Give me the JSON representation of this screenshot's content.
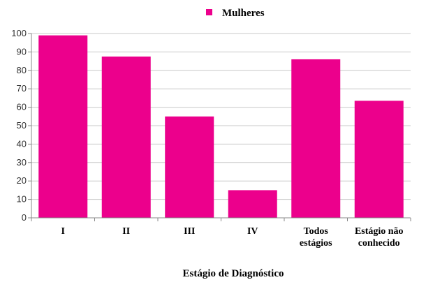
{
  "chart_data": {
    "type": "bar",
    "categories": [
      "I",
      "II",
      "III",
      "IV",
      "Todos estágios",
      "Estágio não conhecido"
    ],
    "series": [
      {
        "name": "Mulheres",
        "values": [
          99,
          87.5,
          55,
          15,
          86,
          63.5
        ]
      }
    ],
    "xlabel": "Estágio de Diagnóstico",
    "ylabel": "",
    "ylim": [
      0,
      100
    ],
    "yticks": [
      0,
      10,
      20,
      30,
      40,
      50,
      60,
      70,
      80,
      90,
      100
    ],
    "grid": true,
    "legend": "top-center",
    "colors": {
      "bar": "#ec008c",
      "grid": "#c8c8c8",
      "axis": "#888888"
    }
  }
}
